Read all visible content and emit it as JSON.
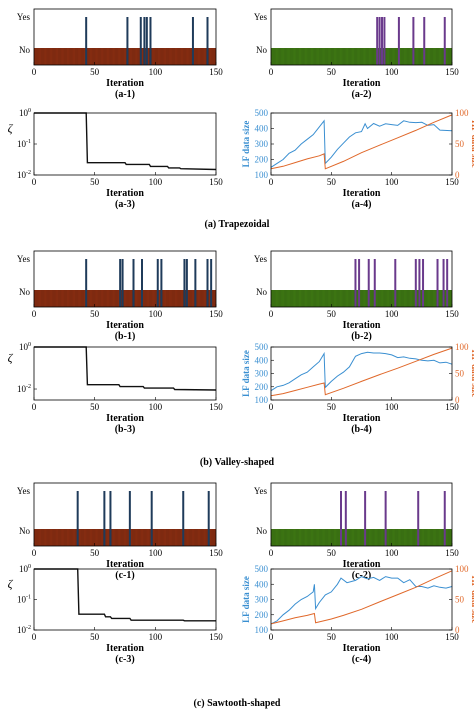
{
  "figure": {
    "groups": [
      {
        "caption": "(a) Trapezoidal"
      },
      {
        "caption": "(b) Valley-shaped"
      },
      {
        "caption": "(c) Sawtooth-shaped"
      }
    ]
  },
  "chart_data": [
    {
      "panel": "(a-1)",
      "type": "bar",
      "xlabel": "Iteration",
      "xlim": [
        0,
        150
      ],
      "xticks": [
        0,
        50,
        100,
        150
      ],
      "ycategories": [
        "No",
        "Yes"
      ],
      "base_color": "#8b2e12",
      "spike_color": "#1f3b5a",
      "yes_iterations": [
        43,
        77,
        88,
        91,
        93,
        96,
        131,
        143
      ]
    },
    {
      "panel": "(a-2)",
      "type": "bar",
      "xlabel": "Iteration",
      "xlim": [
        0,
        150
      ],
      "xticks": [
        0,
        50,
        100,
        150
      ],
      "ycategories": [
        "No",
        "Yes"
      ],
      "base_color": "#3f7a14",
      "spike_color": "#6a3a8c",
      "yes_iterations": [
        88,
        90,
        92,
        94,
        106,
        118,
        127,
        144
      ]
    },
    {
      "panel": "(a-3)",
      "type": "line",
      "xlabel": "Iteration",
      "ylabel": "ζ",
      "xlim": [
        0,
        150
      ],
      "xticks": [
        0,
        50,
        100,
        150
      ],
      "yscale": "log",
      "ylim": [
        0.01,
        1
      ],
      "ytick_labels": [
        "10^0",
        "10^-1",
        "10^-2"
      ],
      "x": [
        0,
        43,
        44,
        75,
        76,
        95,
        96,
        110,
        111,
        120,
        121,
        150
      ],
      "y": [
        1,
        1,
        0.025,
        0.025,
        0.022,
        0.022,
        0.019,
        0.019,
        0.017,
        0.017,
        0.016,
        0.015
      ]
    },
    {
      "panel": "(a-4)",
      "type": "line",
      "xlabel": "Iteration",
      "ylabel": "LF data size",
      "y2label": "HF data size",
      "xlim": [
        0,
        150
      ],
      "xticks": [
        0,
        50,
        100,
        150
      ],
      "ylim": [
        100,
        500
      ],
      "yticks": [
        100,
        200,
        300,
        400,
        500
      ],
      "y2lim": [
        0,
        100
      ],
      "y2ticks": [
        0,
        50,
        100
      ],
      "series": [
        {
          "color": "#3a8fd1",
          "axis": "left",
          "x": [
            0,
            5,
            10,
            15,
            20,
            25,
            30,
            35,
            40,
            44,
            45,
            50,
            55,
            60,
            65,
            70,
            75,
            78,
            80,
            85,
            90,
            95,
            100,
            105,
            110,
            115,
            120,
            125,
            130,
            135,
            140,
            150
          ],
          "y": [
            150,
            175,
            200,
            240,
            260,
            300,
            330,
            360,
            410,
            450,
            175,
            215,
            265,
            305,
            345,
            372,
            380,
            430,
            400,
            432,
            415,
            430,
            425,
            420,
            450,
            440,
            438,
            440,
            420,
            425,
            390,
            385
          ]
        },
        {
          "color": "#e0682a",
          "axis": "right",
          "x": [
            0,
            10,
            20,
            30,
            40,
            44,
            45,
            60,
            75,
            90,
            105,
            120,
            135,
            150
          ],
          "y": [
            10,
            14,
            20,
            26,
            31,
            34,
            10,
            22,
            36,
            48,
            60,
            72,
            85,
            97
          ]
        }
      ]
    },
    {
      "panel": "(b-1)",
      "type": "bar",
      "xlabel": "Iteration",
      "xlim": [
        0,
        150
      ],
      "xticks": [
        0,
        50,
        100,
        150
      ],
      "ycategories": [
        "No",
        "Yes"
      ],
      "base_color": "#8b2e12",
      "spike_color": "#1f3b5a",
      "yes_iterations": [
        43,
        71,
        73,
        82,
        89,
        102,
        105,
        124,
        126,
        133,
        143,
        146
      ]
    },
    {
      "panel": "(b-2)",
      "type": "bar",
      "xlabel": "Iteration",
      "xlim": [
        0,
        150
      ],
      "xticks": [
        0,
        50,
        100,
        150
      ],
      "ycategories": [
        "No",
        "Yes"
      ],
      "base_color": "#3f7a14",
      "spike_color": "#6a3a8c",
      "yes_iterations": [
        70,
        73,
        81,
        86,
        103,
        120,
        123,
        126,
        138,
        143,
        146
      ]
    },
    {
      "panel": "(b-3)",
      "type": "line",
      "xlabel": "Iteration",
      "ylabel": "ζ",
      "xlim": [
        0,
        150
      ],
      "xticks": [
        0,
        50,
        100,
        150
      ],
      "yscale": "log",
      "ylim": [
        0.003,
        1
      ],
      "ytick_labels": [
        "10^0",
        "10^-2"
      ],
      "x": [
        0,
        43,
        44,
        70,
        71,
        90,
        91,
        115,
        116,
        150
      ],
      "y": [
        1,
        1,
        0.016,
        0.016,
        0.013,
        0.013,
        0.011,
        0.011,
        0.0095,
        0.009
      ]
    },
    {
      "panel": "(b-4)",
      "type": "line",
      "xlabel": "Iteration",
      "ylabel": "LF data size",
      "y2label": "HF data size",
      "xlim": [
        0,
        150
      ],
      "xticks": [
        0,
        50,
        100,
        150
      ],
      "ylim": [
        100,
        500
      ],
      "yticks": [
        100,
        200,
        300,
        400,
        500
      ],
      "y2lim": [
        0,
        100
      ],
      "y2ticks": [
        0,
        50,
        100
      ],
      "series": [
        {
          "color": "#3a8fd1",
          "axis": "left",
          "x": [
            0,
            5,
            10,
            15,
            20,
            25,
            30,
            35,
            40,
            44,
            45,
            50,
            55,
            60,
            65,
            70,
            75,
            80,
            85,
            90,
            95,
            100,
            105,
            110,
            115,
            120,
            125,
            130,
            135,
            140,
            145,
            150
          ],
          "y": [
            170,
            200,
            210,
            230,
            260,
            290,
            310,
            350,
            390,
            450,
            195,
            240,
            280,
            310,
            350,
            430,
            450,
            460,
            455,
            455,
            450,
            440,
            420,
            425,
            415,
            410,
            400,
            395,
            400,
            380,
            385,
            370
          ]
        },
        {
          "color": "#e0682a",
          "axis": "right",
          "x": [
            0,
            10,
            20,
            30,
            40,
            44,
            45,
            60,
            75,
            90,
            105,
            120,
            135,
            150
          ],
          "y": [
            8,
            12,
            18,
            24,
            30,
            32,
            10,
            22,
            35,
            48,
            60,
            73,
            86,
            98
          ]
        }
      ]
    },
    {
      "panel": "(c-1)",
      "type": "bar",
      "xlabel": "Iteration",
      "xlim": [
        0,
        150
      ],
      "xticks": [
        0,
        50,
        100,
        150
      ],
      "ycategories": [
        "No",
        "Yes"
      ],
      "base_color": "#8b2e12",
      "spike_color": "#1f3b5a",
      "yes_iterations": [
        36,
        58,
        63,
        79,
        97,
        123,
        144
      ]
    },
    {
      "panel": "(c-2)",
      "type": "bar",
      "xlabel": "Iteration",
      "xlim": [
        0,
        150
      ],
      "xticks": [
        0,
        50,
        100,
        150
      ],
      "ycategories": [
        "No",
        "Yes"
      ],
      "base_color": "#3f7a14",
      "spike_color": "#6a3a8c",
      "yes_iterations": [
        58,
        62,
        78,
        95,
        122,
        144
      ]
    },
    {
      "panel": "(c-3)",
      "type": "line",
      "xlabel": "Iteration",
      "ylabel": "ζ",
      "xlim": [
        0,
        150
      ],
      "xticks": [
        0,
        50,
        100,
        150
      ],
      "yscale": "log",
      "ylim": [
        0.01,
        1
      ],
      "ytick_labels": [
        "10^0",
        "10^-1",
        "10^-2"
      ],
      "x": [
        0,
        36,
        37,
        58,
        59,
        63,
        64,
        79,
        80,
        123,
        124,
        150
      ],
      "y": [
        1,
        1,
        0.033,
        0.033,
        0.027,
        0.027,
        0.024,
        0.024,
        0.021,
        0.021,
        0.02,
        0.02
      ]
    },
    {
      "panel": "(c-4)",
      "type": "line",
      "xlabel": "Iteration",
      "ylabel": "LF data size",
      "y2label": "HF data size",
      "xlim": [
        0,
        150
      ],
      "xticks": [
        0,
        50,
        100,
        150
      ],
      "ylim": [
        100,
        500
      ],
      "yticks": [
        100,
        200,
        300,
        400,
        500
      ],
      "y2lim": [
        0,
        100
      ],
      "y2ticks": [
        0,
        50,
        100
      ],
      "series": [
        {
          "color": "#3a8fd1",
          "axis": "left",
          "x": [
            0,
            5,
            10,
            15,
            20,
            25,
            30,
            35,
            36,
            37,
            40,
            45,
            50,
            55,
            58,
            63,
            70,
            75,
            80,
            85,
            90,
            95,
            100,
            105,
            110,
            115,
            120,
            125,
            130,
            135,
            140,
            145,
            150
          ],
          "y": [
            140,
            160,
            200,
            230,
            270,
            300,
            320,
            350,
            400,
            240,
            280,
            330,
            350,
            400,
            440,
            410,
            425,
            450,
            435,
            445,
            425,
            450,
            440,
            440,
            410,
            430,
            385,
            385,
            375,
            390,
            380,
            375,
            385
          ]
        },
        {
          "color": "#e0682a",
          "axis": "right",
          "x": [
            0,
            10,
            20,
            30,
            36,
            37,
            50,
            60,
            75,
            90,
            105,
            120,
            135,
            150
          ],
          "y": [
            10,
            15,
            20,
            24,
            27,
            12,
            18,
            24,
            34,
            46,
            58,
            70,
            84,
            97
          ]
        }
      ]
    }
  ]
}
